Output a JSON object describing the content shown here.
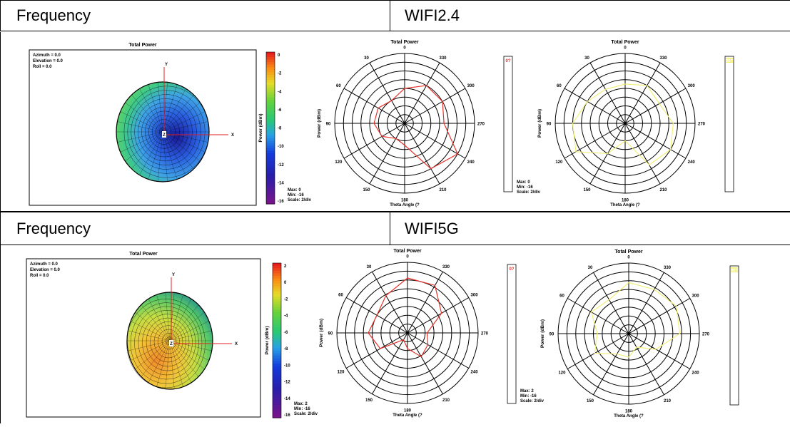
{
  "sections": [
    {
      "header": {
        "label": "Frequency",
        "value": "WIFI2.4"
      },
      "colors": {
        "polar_left": "#e8322c",
        "polar_right": "#f2f07a"
      },
      "charts": {
        "view3d": {
          "title": "Total Power",
          "orientation": [
            "Azimuth = 0.0",
            "Elevation = 0.0",
            "Roll = 0.0"
          ],
          "axes": {
            "x": "X",
            "y": "Y",
            "z": "Z"
          },
          "colorbar_label": "Power (dBm)",
          "colorbar_ticks": [
            "0",
            "-2",
            "-4",
            "-6",
            "-8",
            "-10",
            "-12",
            "-14",
            "-16"
          ]
        },
        "polar_left": {
          "title": "Total Power",
          "angle_labels": [
            "0",
            "30",
            "60",
            "90",
            "120",
            "150",
            "180",
            "210",
            "240",
            "270",
            "300",
            "330"
          ],
          "ylabel": "Power (dBm)",
          "xlabel": "Theta Angle (?",
          "stats": [
            "Max: 0",
            "Min: -16",
            "Scale: 2/div"
          ],
          "legend_tag": "0?"
        },
        "polar_right": {
          "title": "Total Power",
          "angle_labels": [
            "0",
            "30",
            "60",
            "90",
            "120",
            "150",
            "180",
            "210",
            "240",
            "270",
            "300",
            "330"
          ],
          "ylabel": "Power (dBm)",
          "xlabel": "Theta Angle (?",
          "legend_tag": "90?"
        }
      }
    },
    {
      "header": {
        "label": "Frequency",
        "value": "WIFI5G"
      },
      "colors": {
        "polar_left": "#e8322c",
        "polar_right": "#f2f07a"
      },
      "charts": {
        "view3d": {
          "title": "Total Power",
          "orientation": [
            "Azimuth = 0.0",
            "Elevation = 0.0",
            "Roll = 0.0"
          ],
          "axes": {
            "x": "X",
            "y": "Y",
            "z": "Z"
          },
          "colorbar_label": "Power (dBm)",
          "colorbar_ticks": [
            "2",
            "0",
            "-2",
            "-4",
            "-6",
            "-8",
            "-10",
            "-12",
            "-14",
            "-16"
          ]
        },
        "polar_left": {
          "title": "Total Power",
          "angle_labels": [
            "0",
            "30",
            "60",
            "90",
            "120",
            "150",
            "180",
            "210",
            "240",
            "270",
            "300",
            "330"
          ],
          "ylabel": "Power (dBm)",
          "xlabel": "Theta Angle (?",
          "stats": [
            "Max: 2",
            "Min: -16",
            "Scale: 2/div"
          ],
          "legend_tag": "0?"
        },
        "polar_right": {
          "title": "Total Power",
          "angle_labels": [
            "0",
            "30",
            "60",
            "90",
            "120",
            "150",
            "180",
            "210",
            "240",
            "270",
            "300",
            "330"
          ],
          "ylabel": "Power (dBm)",
          "xlabel": "Theta Angle (?",
          "legend_tag": "90?"
        }
      }
    }
  ],
  "chart_data": [
    {
      "type": "polar",
      "title": "Total Power",
      "series": [
        {
          "name": "0?",
          "theta_deg": [
            0,
            30,
            60,
            90,
            120,
            150,
            180,
            210,
            240,
            270,
            300,
            330
          ],
          "values_dbm": [
            -8,
            -10,
            -9,
            -9,
            -10,
            -12,
            -11,
            -4,
            -2,
            -7,
            -6,
            -6
          ]
        }
      ],
      "rlim": [
        -16,
        0
      ],
      "scale_per_div": 2,
      "ylabel": "Power (dBm)",
      "xlabel": "Theta Angle (?"
    },
    {
      "type": "polar",
      "title": "Total Power",
      "series": [
        {
          "name": "90?",
          "theta_deg": [
            0,
            30,
            60,
            90,
            120,
            150,
            180,
            210,
            240,
            270,
            300,
            330
          ],
          "values_dbm": [
            -7,
            -7,
            -6,
            -4,
            -3,
            -8,
            -12,
            -5,
            -4,
            -5,
            -7,
            -6
          ]
        }
      ],
      "rlim": [
        -16,
        0
      ],
      "scale_per_div": 2,
      "ylabel": "Power (dBm)",
      "xlabel": "Theta Angle (?"
    },
    {
      "type": "polar",
      "title": "Total Power",
      "series": [
        {
          "name": "0?",
          "theta_deg": [
            0,
            30,
            60,
            90,
            120,
            150,
            180,
            210,
            240,
            270,
            300,
            330
          ],
          "values_dbm": [
            -2,
            -5,
            -7,
            -6,
            -8,
            -14,
            -12,
            -9,
            -10,
            -11,
            -6,
            -2
          ]
        }
      ],
      "rlim": [
        -16,
        2
      ],
      "scale_per_div": 2,
      "ylabel": "Power (dBm)",
      "xlabel": "Theta Angle (?"
    },
    {
      "type": "polar",
      "title": "Total Power",
      "series": [
        {
          "name": "90?",
          "theta_deg": [
            0,
            30,
            60,
            90,
            120,
            150,
            180,
            210,
            240,
            270,
            300,
            330
          ],
          "values_dbm": [
            -3,
            -6,
            -5,
            -8,
            -6,
            -10,
            -10,
            -12,
            -8,
            -3,
            -2,
            -3
          ]
        }
      ],
      "rlim": [
        -16,
        2
      ],
      "scale_per_div": 2,
      "ylabel": "Power (dBm)",
      "xlabel": "Theta Angle (?"
    }
  ]
}
